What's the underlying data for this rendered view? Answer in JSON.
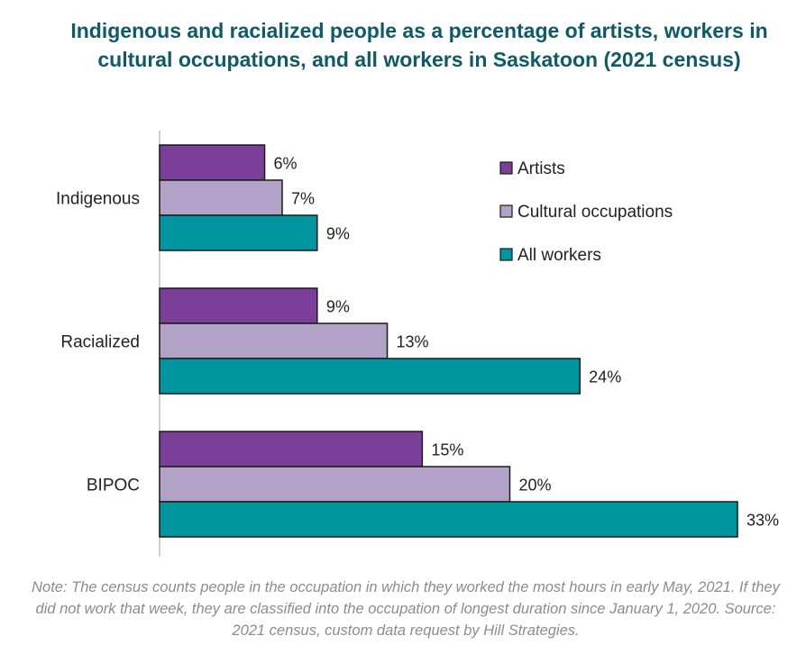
{
  "title": "Indigenous and racialized people as a percentage of artists, workers in cultural occupations, and all workers in Saskatoon (2021 census)",
  "note": "Note: The census counts people in the occupation in which they worked the most hours in early May, 2021. If they did not work that week, they are classified into the occupation of longest duration since January 1, 2020. Source: 2021 census, custom data request by Hill Strategies.",
  "chart_data": {
    "type": "bar",
    "orientation": "horizontal",
    "categories": [
      "Indigenous",
      "Racialized",
      "BIPOC"
    ],
    "series": [
      {
        "name": "Artists",
        "color": "#7b3f9a",
        "values": [
          6,
          9,
          15
        ],
        "labels": [
          "6%",
          "9%",
          "15%"
        ]
      },
      {
        "name": "Cultural occupations",
        "color": "#b3a2c8",
        "values": [
          7,
          13,
          20
        ],
        "labels": [
          "7%",
          "13%",
          "20%"
        ]
      },
      {
        "name": "All workers",
        "color": "#00969f",
        "values": [
          9,
          24,
          33
        ],
        "labels": [
          "9%",
          "24%",
          "33%"
        ]
      }
    ],
    "unit": "%",
    "xlim": [
      0,
      33
    ],
    "grid": false,
    "legend_position": "top-right"
  }
}
